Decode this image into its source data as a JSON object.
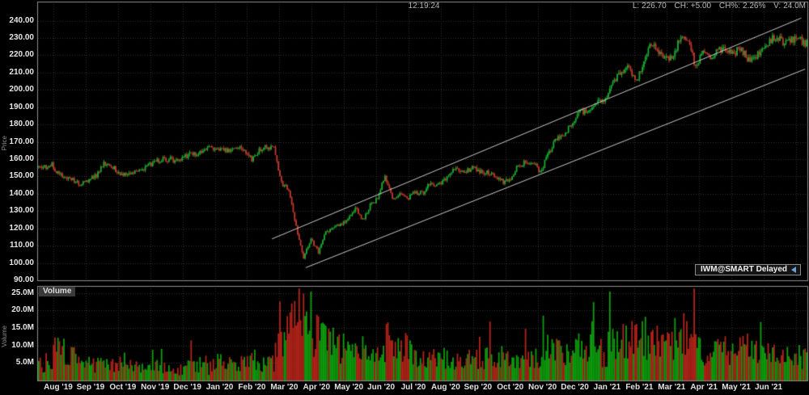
{
  "header": {
    "clock": "12:19:24",
    "quote": {
      "last_label": "L:",
      "last": "226.70",
      "change_label": "CH:",
      "change": "+5.00",
      "change_pct_label": "CH%:",
      "change_pct": "2.26%",
      "volume_label": "V:",
      "volume": "24.0M"
    }
  },
  "badges": {
    "symbol_badge": "IWM@SMART Delayed",
    "volume_panel_badge": "Volume"
  },
  "axes": {
    "price_axis_title": "Price",
    "volume_axis_title": "Volume",
    "price_ticks": [
      "240.00",
      "230.00",
      "220.00",
      "210.00",
      "200.00",
      "190.00",
      "180.00",
      "170.00",
      "160.00",
      "150.00",
      "140.00",
      "130.00",
      "120.00",
      "110.00",
      "100.00",
      "90.00"
    ],
    "volume_ticks": [
      "25.0M",
      "20.0M",
      "15.0M",
      "10.0M",
      "5.0M"
    ],
    "month_labels": [
      "Aug '19",
      "Sep '19",
      "Oct '19",
      "Nov '19",
      "Dec '19",
      "Jan '20",
      "Feb '20",
      "Mar '20",
      "Apr '20",
      "May '20",
      "Jun '20",
      "Jul '20",
      "Aug '20",
      "Sep '20",
      "Oct '20",
      "Nov '20",
      "Dec '20",
      "Jan '21",
      "Feb '21",
      "Mar '21",
      "Apr '21",
      "May '21",
      "Jun '21"
    ]
  },
  "chart_data": {
    "type": "candlestick",
    "symbol": "IWM",
    "timeframe": "daily",
    "x_start": "2019-07-15",
    "x_end": "2021-07-09",
    "price_ylim": [
      90,
      251
    ],
    "volume_ylim": [
      0,
      27
    ],
    "grid": true,
    "weekly_closes": [
      155.5,
      156.9,
      150.6,
      149.0,
      147.9,
      145.5,
      148.3,
      150.5,
      157.0,
      156.2,
      152.4,
      150.2,
      151.3,
      154.0,
      156.5,
      158.8,
      159.8,
      159.9,
      159.0,
      162.0,
      162.5,
      163.5,
      166.2,
      165.7,
      164.9,
      164.4,
      167.9,
      165.6,
      159.3,
      164.7,
      167.5,
      165.7,
      146.0,
      142.5,
      120.5,
      103.5,
      113.6,
      106.0,
      117.5,
      121.0,
      122.5,
      126.0,
      131.5,
      124.5,
      133.0,
      137.0,
      150.3,
      137.5,
      140.2,
      136.9,
      141.1,
      140.0,
      145.3,
      144.5,
      147.5,
      153.6,
      154.5,
      153.0,
      155.5,
      152.5,
      152.0,
      150.5,
      146.5,
      148.0,
      157.0,
      157.8,
      158.3,
      152.7,
      161.6,
      171.5,
      174.4,
      178.1,
      186.3,
      187.3,
      191.0,
      192.8,
      196.4,
      205.5,
      210.0,
      213.0,
      205.5,
      216.5,
      227.0,
      223.0,
      218.5,
      219.0,
      232.5,
      228.0,
      213.5,
      222.0,
      219.0,
      222.5,
      225.0,
      220.5,
      224.0,
      218.0,
      218.5,
      222.5,
      228.5,
      231.5,
      226.0,
      229.5,
      229.0,
      226.7
    ],
    "weekly_volumes_M": [
      4.5,
      4.0,
      8.0,
      7.5,
      6.5,
      6.0,
      4.5,
      4.0,
      4.5,
      4.5,
      4.0,
      5.5,
      4.0,
      3.8,
      3.8,
      4.0,
      3.8,
      3.5,
      3.5,
      3.0,
      4.0,
      4.5,
      4.5,
      2.8,
      5.0,
      4.5,
      4.2,
      4.5,
      6.5,
      5.5,
      4.5,
      5.0,
      9.0,
      12.0,
      15.0,
      19.0,
      16.0,
      13.0,
      11.0,
      9.5,
      9.0,
      8.5,
      8.0,
      8.5,
      8.0,
      7.5,
      10.0,
      11.0,
      9.0,
      8.5,
      7.5,
      7.0,
      6.5,
      6.0,
      6.0,
      5.5,
      5.0,
      5.0,
      5.5,
      6.5,
      6.0,
      6.0,
      6.5,
      6.0,
      5.5,
      5.5,
      5.5,
      6.5,
      8.5,
      9.0,
      8.0,
      8.0,
      9.5,
      9.0,
      8.5,
      8.0,
      7.5,
      10.0,
      10.5,
      11.0,
      13.5,
      12.5,
      11.5,
      10.0,
      9.5,
      11.0,
      12.0,
      11.0,
      10.5,
      9.0,
      8.5,
      8.0,
      8.0,
      8.0,
      8.5,
      9.0,
      7.5,
      7.0,
      7.5,
      7.0,
      8.5,
      8.0,
      7.0,
      6.5
    ],
    "trendlines": [
      {
        "x1_frac": 0.304,
        "price1": 113.9,
        "x2_frac": 0.992,
        "price2": 241.5
      },
      {
        "x1_frac": 0.348,
        "price1": 97.3,
        "x2_frac": 0.997,
        "price2": 212.0
      }
    ],
    "colors": {
      "bg": "#000000",
      "grid": "#333333",
      "border": "#8c8c8c",
      "trendline": "#c9c9c9",
      "up": "#19a82f",
      "down": "#bf382c",
      "vol_up": "#0d9e0d",
      "vol_down": "#b3241a",
      "text": "#e6e6e6",
      "dim_text": "#8f8f8f"
    }
  }
}
